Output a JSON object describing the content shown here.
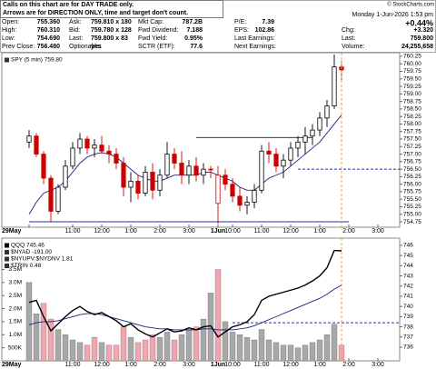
{
  "header": {
    "note": [
      "Calls on this chart are for DAY TRADE only.",
      "Arrows are for DIRECTION ONLY, time and target don't count."
    ],
    "copyright": "© StockCharts.com",
    "date": "Monday  1-Jun-2026  1:53 pm",
    "change_pct": "+0.44%",
    "rows": [
      [
        [
          "Open:",
          "755.360"
        ],
        [
          "Ask:",
          "759.810 x 180"
        ],
        [
          "Mkt Cap:",
          "787.2B"
        ],
        [
          "P/E:",
          "7.39"
        ]
      ],
      [
        [
          "High:",
          "760.310"
        ],
        [
          "Bid:",
          "759.780 x 128"
        ],
        [
          "Fwd Dividend:",
          "7.188"
        ],
        [
          "EPS:",
          "102.86"
        ]
      ],
      [
        [
          "Low:",
          "754.690"
        ],
        [
          "Last:",
          "759.800 x 83"
        ],
        [
          "Fwd Yield:",
          "0.95%"
        ],
        [
          "Last Earnings:"
        ]
      ],
      [
        [
          "Prev Close:",
          "756.480"
        ],
        [
          "Optionable:",
          "yes"
        ],
        [
          "SCTR (ETF):",
          "77.6"
        ],
        [
          "Next Earnings:"
        ]
      ]
    ],
    "right_rows": [
      [
        "Chg:",
        "+3.320"
      ],
      [
        "Last:",
        "759.800"
      ],
      [
        "Volume:",
        "24,255,658"
      ]
    ]
  },
  "chart_data": [
    {
      "type": "candlestick",
      "label": "SPY (5 min) 759.80",
      "up_color": "#000000",
      "down_color": "#cc0000",
      "ma_color": "#1a237e",
      "line_color": "#2233aa",
      "marker_color": "#f0a020",
      "x": [
        0,
        1,
        2,
        3,
        4,
        5,
        6,
        7,
        8,
        9,
        10,
        11,
        12,
        13,
        14,
        15,
        16,
        17,
        18,
        19,
        20,
        21,
        22,
        23,
        24,
        25,
        26,
        27,
        28,
        29,
        30,
        31,
        32,
        33,
        34,
        35,
        36,
        37,
        38,
        39,
        40,
        41,
        42,
        43
      ],
      "open": [
        757.4,
        757.6,
        757.0,
        756.2,
        755.1,
        755.9,
        756.6,
        757.2,
        757.5,
        757.2,
        757.3,
        757.1,
        757.0,
        756.7,
        755.9,
        756.1,
        755.7,
        756.4,
        755.8,
        756.3,
        757.0,
        756.7,
        756.3,
        756.6,
        756.3,
        756.5,
        755.36,
        756.3,
        756.0,
        755.6,
        755.3,
        755.4,
        755.8,
        757.1,
        757.0,
        756.6,
        756.8,
        757.2,
        757.4,
        757.6,
        757.8,
        758.2,
        758.6,
        759.9
      ],
      "high": [
        757.8,
        757.7,
        757.1,
        756.3,
        756.0,
        756.8,
        757.4,
        757.7,
        757.6,
        757.5,
        757.6,
        757.3,
        757.2,
        756.9,
        756.4,
        756.3,
        756.6,
        756.7,
        756.5,
        757.4,
        757.2,
        757.1,
        756.8,
        756.9,
        756.7,
        756.6,
        756.6,
        756.5,
        756.2,
        755.9,
        755.6,
        756.0,
        757.3,
        757.4,
        757.2,
        757.0,
        757.4,
        757.6,
        757.9,
        758.0,
        758.4,
        758.8,
        760.31,
        760.1
      ],
      "low": [
        757.2,
        756.9,
        756.0,
        754.75,
        755.0,
        755.8,
        756.5,
        757.0,
        757.0,
        756.9,
        757.0,
        756.7,
        756.5,
        755.6,
        755.4,
        755.5,
        755.6,
        755.5,
        755.6,
        756.2,
        756.5,
        756.0,
        756.0,
        756.1,
        756.0,
        756.2,
        754.69,
        755.8,
        755.4,
        755.1,
        755.0,
        755.2,
        755.7,
        756.7,
        756.4,
        756.2,
        756.6,
        756.9,
        757.0,
        757.3,
        757.6,
        757.9,
        758.5,
        759.4
      ],
      "close": [
        757.6,
        757.0,
        756.2,
        755.1,
        755.9,
        756.6,
        757.2,
        757.5,
        757.2,
        757.3,
        757.1,
        757.0,
        756.7,
        755.9,
        756.1,
        755.7,
        756.4,
        755.8,
        756.3,
        757.0,
        756.7,
        756.3,
        756.6,
        756.3,
        756.5,
        756.48,
        756.3,
        756.0,
        755.6,
        755.3,
        755.4,
        755.8,
        757.1,
        757.0,
        756.6,
        756.8,
        757.2,
        757.4,
        757.6,
        757.8,
        758.2,
        758.6,
        759.9,
        759.8
      ],
      "ma": [
        755.0,
        755.4,
        755.7,
        755.8,
        755.9,
        756.1,
        756.4,
        756.7,
        756.9,
        757.0,
        757.05,
        757.0,
        756.9,
        756.7,
        756.5,
        756.3,
        756.2,
        756.1,
        756.1,
        756.2,
        756.3,
        756.3,
        756.3,
        756.3,
        756.4,
        756.4,
        756.3,
        756.2,
        756.1,
        755.9,
        755.8,
        755.8,
        756.0,
        756.2,
        756.3,
        756.4,
        756.6,
        756.8,
        757.0,
        757.2,
        757.4,
        757.7,
        758.0,
        758.3
      ],
      "hlines": [
        {
          "value": 757.55,
          "from": 23,
          "to": 39,
          "style": "solid"
        },
        {
          "value": 756.5,
          "from": 37,
          "to": 51,
          "style": "dashed"
        },
        {
          "value": 754.75,
          "from": 0,
          "to": 44,
          "style": "solid"
        }
      ],
      "xlim": [
        -3.5,
        51
      ],
      "xticks": [
        {
          "value": 0,
          "label": "29May"
        },
        {
          "value": 6,
          "label": "11:00"
        },
        {
          "value": 10,
          "label": "12:00"
        },
        {
          "value": 14,
          "label": "1:00"
        },
        {
          "value": 18,
          "label": "2:00"
        },
        {
          "value": 22,
          "label": "3:00"
        },
        {
          "value": 26,
          "label": "1Jun"
        },
        {
          "value": 28,
          "label": "10:00"
        },
        {
          "value": 32,
          "label": "11:00"
        },
        {
          "value": 36,
          "label": "12:00"
        },
        {
          "value": 40,
          "label": "1:00"
        },
        {
          "value": 44,
          "label": "2:00"
        },
        {
          "value": 48,
          "label": "3:00"
        }
      ],
      "ylim": [
        754.57,
        760.37
      ],
      "yticks": [
        760.25,
        {
          "value": 760,
          "label": "760.00"
        },
        759.75,
        {
          "value": 759.5,
          "label": "759.50"
        },
        759.25,
        {
          "value": 759,
          "label": "759.00"
        },
        758.75,
        {
          "value": 758.5,
          "label": "758.50"
        },
        758.25,
        {
          "value": 758,
          "label": "758.00"
        },
        757.75,
        {
          "value": 757.5,
          "label": "757.50"
        },
        757.25,
        {
          "value": 757,
          "label": "757.00"
        },
        756.75,
        {
          "value": 756.5,
          "label": "756.50"
        },
        756.25,
        {
          "value": 756,
          "label": "756.00"
        },
        755.75,
        {
          "value": 755.5,
          "label": "755.50"
        },
        755.25,
        {
          "value": 755,
          "label": "755.00"
        },
        754.75
      ]
    },
    {
      "type": "line",
      "series": [
        {
          "name": "QQQ 745.46",
          "color": "#000000",
          "values": [
            740.4,
            740.6,
            739.0,
            737.6,
            738.3,
            739.0,
            739.6,
            740.0,
            739.5,
            739.2,
            739.4,
            739.0,
            738.6,
            738.0,
            738.3,
            737.7,
            737.3,
            737.0,
            737.4,
            737.8,
            737.5,
            737.6,
            737.9,
            737.7,
            738.0,
            738.1,
            737.0,
            737.5,
            738.0,
            738.2,
            738.5,
            739.2,
            740.6,
            741.0,
            741.2,
            741.4,
            741.6,
            741.8,
            742.1,
            742.5,
            743.0,
            743.8,
            745.5,
            745.46
          ]
        }
      ],
      "legend_items": [
        {
          "name": "$NYAD -191.00",
          "color": "#333333"
        },
        {
          "name": "$NYUPV:$NYDNV 1.81",
          "color": "#333333"
        },
        {
          "name": "$TRIN 0.48",
          "color": "#333333"
        }
      ],
      "ma_color": "#1a237e",
      "line_color": "#2233aa",
      "marker_color": "#f0a020",
      "ma": [
        738.2,
        738.4,
        738.5,
        738.5,
        738.6,
        738.8,
        739.0,
        739.2,
        739.3,
        739.3,
        739.2,
        739.0,
        738.8,
        738.6,
        738.4,
        738.2,
        738.0,
        737.9,
        737.8,
        737.8,
        737.7,
        737.7,
        737.7,
        737.7,
        737.8,
        737.8,
        737.7,
        737.7,
        737.7,
        737.8,
        737.9,
        738.1,
        738.4,
        738.7,
        739.0,
        739.3,
        739.6,
        739.9,
        740.2,
        740.5,
        740.8,
        741.2,
        741.7,
        742.1
      ],
      "volume": {
        "axis": "y2",
        "up_color": "#a8a8a8",
        "down_color": "#f2a7b0",
        "values": [
          3000000,
          1800000,
          2200000,
          1600000,
          1200000,
          1000000,
          800000,
          700000,
          600000,
          900000,
          700000,
          600000,
          600000,
          1300000,
          900000,
          700000,
          800000,
          1000000,
          900000,
          1100000,
          800000,
          1000000,
          1200000,
          1300000,
          1600000,
          2600000,
          3500000,
          1500000,
          1100000,
          1000000,
          900000,
          800000,
          1200000,
          800000,
          700000,
          600000,
          600000,
          500000,
          600000,
          700000,
          800000,
          1000000,
          1400000,
          600000
        ]
      },
      "hlines": [
        {
          "value": 738.4,
          "from": 28,
          "to": 51,
          "style": "dashed"
        }
      ],
      "x": [
        0,
        1,
        2,
        3,
        4,
        5,
        6,
        7,
        8,
        9,
        10,
        11,
        12,
        13,
        14,
        15,
        16,
        17,
        18,
        19,
        20,
        21,
        22,
        23,
        24,
        25,
        26,
        27,
        28,
        29,
        30,
        31,
        32,
        33,
        34,
        35,
        36,
        37,
        38,
        39,
        40,
        41,
        42,
        43
      ],
      "xlim": [
        -3.5,
        51
      ],
      "xticks": [
        {
          "value": 0,
          "label": "29May"
        },
        {
          "value": 6,
          "label": "11:00"
        },
        {
          "value": 10,
          "label": "12:00"
        },
        {
          "value": 14,
          "label": "1:00"
        },
        {
          "value": 18,
          "label": "2:00"
        },
        {
          "value": 22,
          "label": "3:00"
        },
        {
          "value": 26,
          "label": "1Jun"
        },
        {
          "value": 28,
          "label": "10:00"
        },
        {
          "value": 32,
          "label": "11:00"
        },
        {
          "value": 36,
          "label": "12:00"
        },
        {
          "value": 40,
          "label": "1:00"
        },
        {
          "value": 44,
          "label": "2:00"
        },
        {
          "value": 48,
          "label": "3:00"
        }
      ],
      "ylim": [
        734.66,
        746.71
      ],
      "yticks": [
        736,
        737,
        738,
        739,
        740,
        741,
        742,
        743,
        744,
        745,
        746
      ],
      "y2lim": [
        0,
        4700000
      ],
      "y2ticks": [
        {
          "value": 3500000,
          "label": "3.5M"
        },
        {
          "value": 3000000,
          "label": "3.0M"
        },
        {
          "value": 2500000,
          "label": "2.5M"
        },
        {
          "value": 2000000,
          "label": "2.0M"
        },
        {
          "value": 1500000,
          "label": "1.5M"
        },
        {
          "value": 1000000,
          "label": "1.0M"
        },
        {
          "value": 500000,
          "label": "500K"
        }
      ]
    }
  ]
}
